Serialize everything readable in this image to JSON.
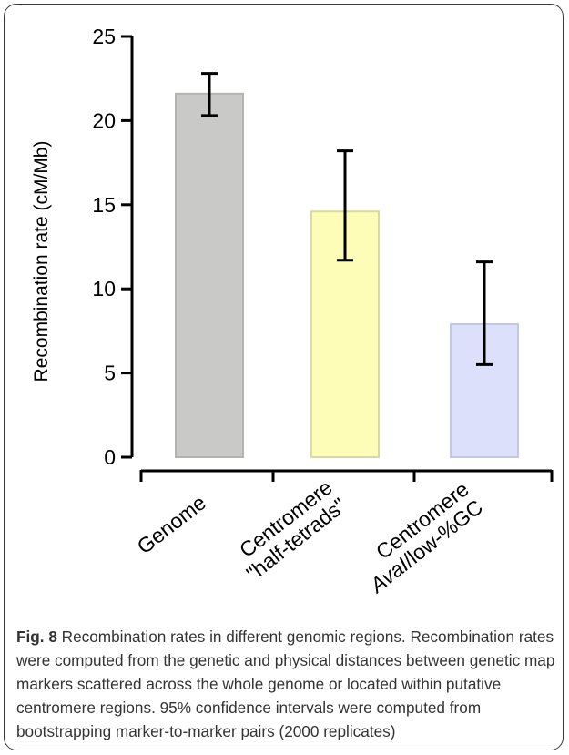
{
  "chart_data": {
    "type": "bar",
    "categories": [
      "Genome",
      "Centromere\n\"half-tetrads\"",
      "Centromere\nAvaI/low-%GC"
    ],
    "category_lines": [
      [
        {
          "text": "Genome",
          "italic": false
        }
      ],
      [
        {
          "text": "Centromere",
          "italic": false
        },
        {
          "text": "\"half-tetrads\"",
          "italic": false
        }
      ],
      [
        {
          "text": "Centromere",
          "italic": false
        },
        {
          "text": "AvaI",
          "italic": true,
          "suffix": "/low-%GC"
        }
      ]
    ],
    "values": [
      21.6,
      14.6,
      7.9
    ],
    "error_low": [
      20.3,
      11.7,
      5.5
    ],
    "error_high": [
      22.8,
      18.2,
      11.6
    ],
    "colors": [
      "#c9cac8",
      "#fdfdb8",
      "#dde0fb"
    ],
    "edge_colors": [
      "#b3b4b2",
      "#d9d9a0",
      "#c4c7e0"
    ],
    "ylabel": "Recombination rate (cM/Mb)",
    "xlabel": "",
    "title": "",
    "ylim": [
      0,
      25
    ],
    "yticks": [
      0,
      5,
      10,
      15,
      20,
      25
    ],
    "grid": false
  },
  "caption": {
    "fig_label": "Fig. 8",
    "text": " Recombination rates in different genomic regions. Recombination rates were computed from the genetic and physical distances between genetic map markers scattered across the whole genome or located within putative centromere regions. 95% confidence intervals were computed from bootstrapping marker-to-marker pairs (2000 replicates)"
  }
}
